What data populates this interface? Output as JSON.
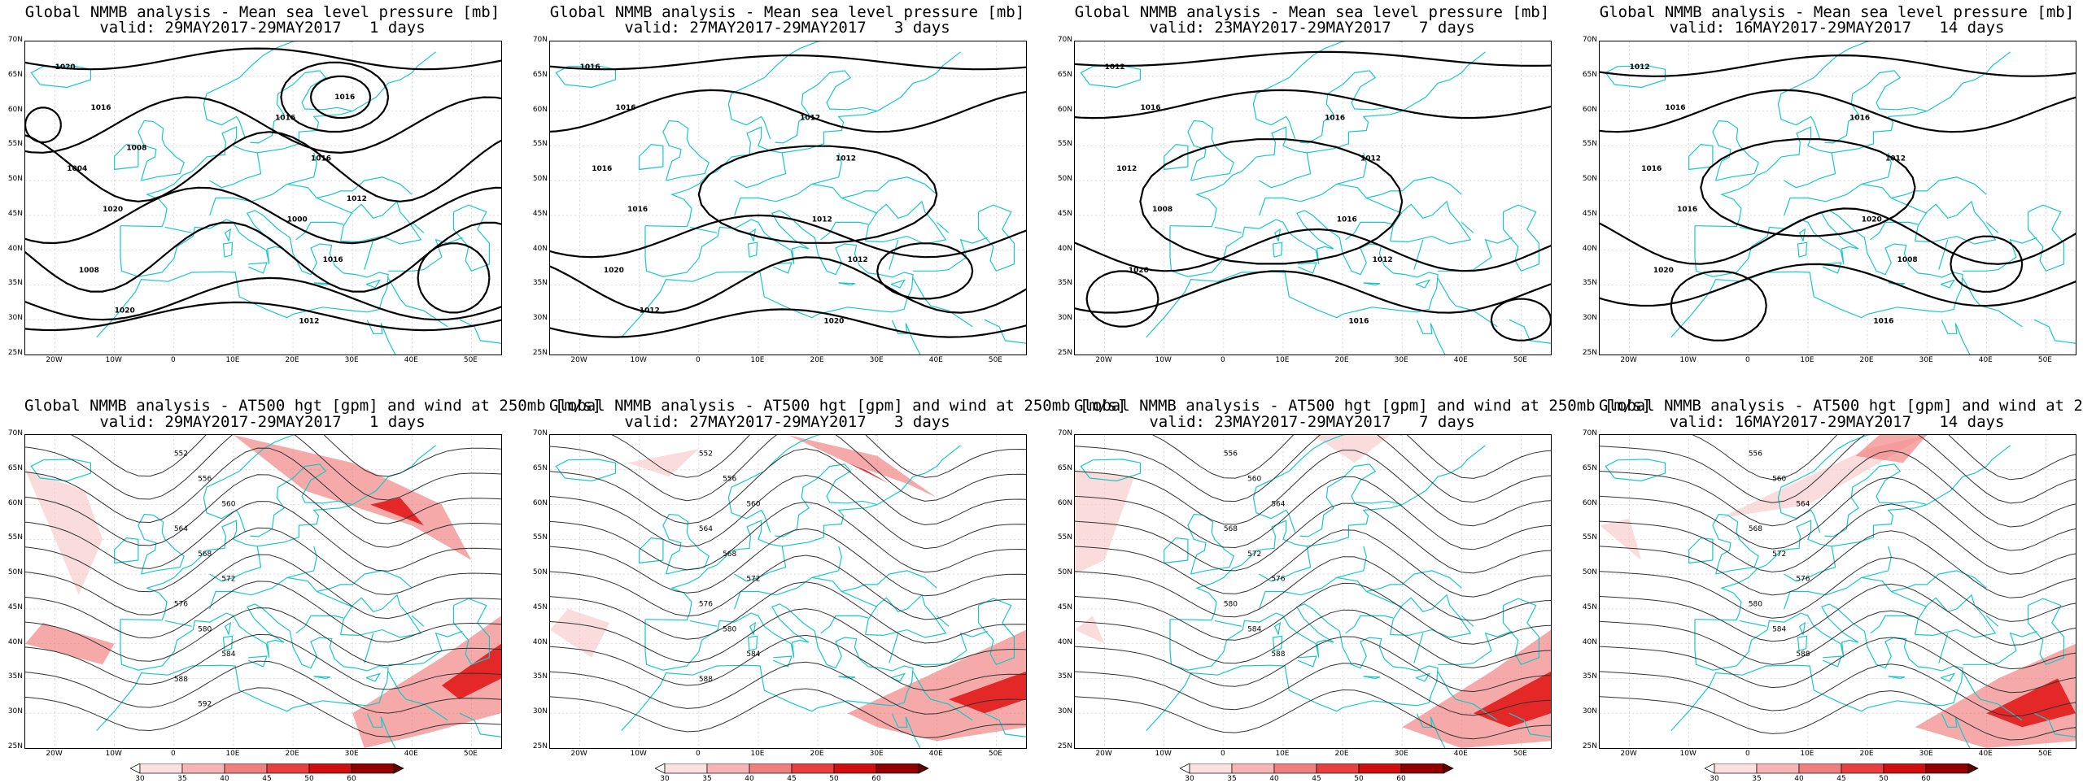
{
  "top_title": "Global NMMB analysis - Mean sea level pressure [mb]",
  "bottom_title": "Global NMMB analysis - AT500 hgt [gpm] and wind at 250mb [m/s]",
  "valid_lines": [
    "valid: 29MAY2017-29MAY2017   1 days",
    "valid: 27MAY2017-29MAY2017   3 days",
    "valid: 23MAY2017-29MAY2017   7 days",
    "valid: 16MAY2017-29MAY2017   14 days"
  ],
  "lat_labels": [
    "70N",
    "65N",
    "60N",
    "55N",
    "50N",
    "45N",
    "40N",
    "35N",
    "30N",
    "25N"
  ],
  "lon_labels": [
    "20W",
    "10W",
    "0",
    "10E",
    "20E",
    "30E",
    "40E",
    "50E"
  ],
  "colorbar_ticks": [
    "30",
    "35",
    "40",
    "45",
    "50",
    "60"
  ],
  "colors": {
    "coast": "#18c8c8",
    "contour": "#000000",
    "wind_light": "#f8c4c4",
    "wind_mid": "#f07070",
    "wind_dark": "#e01010"
  },
  "mslp_labels": [
    [
      "1020",
      "1016",
      "1004",
      "1000",
      "1008",
      "1012",
      "1016",
      "1016",
      "1020",
      "1016",
      "1020",
      "1016",
      "1008",
      "1012"
    ],
    [
      "1016",
      "1012",
      "1016",
      "1012",
      "1020",
      "1020",
      "1016",
      "1012",
      "1016",
      "1012",
      "1012"
    ],
    [
      "1012",
      "1016",
      "1012",
      "1016",
      "1020",
      "1016",
      "1016",
      "1012",
      "1008",
      "1012"
    ],
    [
      "1012",
      "1016",
      "1016",
      "1020",
      "1020",
      "1016",
      "1016",
      "1012",
      "1016",
      "1008"
    ]
  ],
  "z500_labels": [
    [
      "552",
      "556",
      "560",
      "564",
      "568",
      "572",
      "576",
      "580",
      "584",
      "588",
      "592"
    ],
    [
      "552",
      "556",
      "560",
      "564",
      "568",
      "572",
      "576",
      "580",
      "584",
      "588"
    ],
    [
      "556",
      "560",
      "564",
      "568",
      "572",
      "576",
      "580",
      "584",
      "588"
    ],
    [
      "556",
      "560",
      "564",
      "568",
      "572",
      "576",
      "580",
      "584",
      "588"
    ]
  ]
}
